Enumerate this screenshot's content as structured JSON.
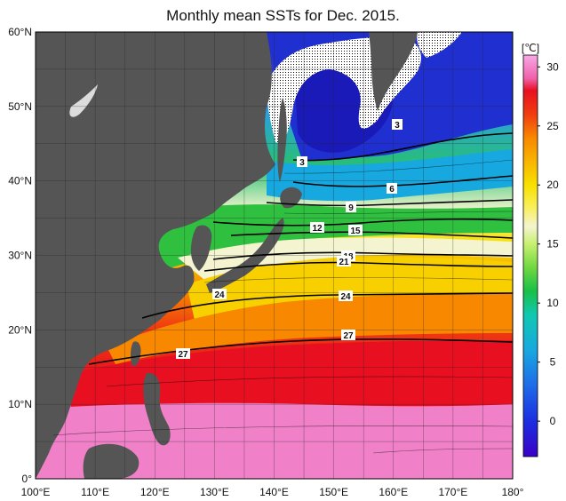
{
  "title": "Monthly mean SSTs for Dec. 2015.",
  "map": {
    "lon_labels": [
      "100°E",
      "110°E",
      "120°E",
      "130°E",
      "140°E",
      "150°E",
      "160°E",
      "170°E",
      "180°"
    ],
    "lat_labels": [
      "60°N",
      "50°N",
      "40°N",
      "30°N",
      "20°N",
      "10°N",
      "0°"
    ],
    "colors": {
      "land": "#555555",
      "sea_ice": "#ffffff",
      "isotherm": "#000000",
      "grid": "#222222"
    },
    "isotherm_labels": [
      "3",
      "3",
      "6",
      "9",
      "12",
      "15",
      "18",
      "21",
      "24",
      "24",
      "27",
      "27"
    ]
  },
  "colorbar": {
    "unit": "[℃]",
    "ticks": [
      "30",
      "25",
      "20",
      "15",
      "10",
      "5",
      "0"
    ],
    "range": [
      -3,
      31
    ],
    "stops": [
      {
        "v": -3,
        "c": "#3a00c8"
      },
      {
        "v": 0,
        "c": "#1b2ee0"
      },
      {
        "v": 3,
        "c": "#1e6be8"
      },
      {
        "v": 6,
        "c": "#18a8e0"
      },
      {
        "v": 9,
        "c": "#10c8b0"
      },
      {
        "v": 11,
        "c": "#18c048"
      },
      {
        "v": 13,
        "c": "#70d840"
      },
      {
        "v": 15,
        "c": "#c8f070"
      },
      {
        "v": 16.5,
        "c": "#f4f4d0"
      },
      {
        "v": 18,
        "c": "#f8f060"
      },
      {
        "v": 20,
        "c": "#f8e000"
      },
      {
        "v": 22,
        "c": "#f8b400"
      },
      {
        "v": 24,
        "c": "#f88800"
      },
      {
        "v": 26,
        "c": "#f03c10"
      },
      {
        "v": 28,
        "c": "#e81020"
      },
      {
        "v": 29,
        "c": "#f060a8"
      },
      {
        "v": 31,
        "c": "#f8a8e8"
      }
    ]
  }
}
